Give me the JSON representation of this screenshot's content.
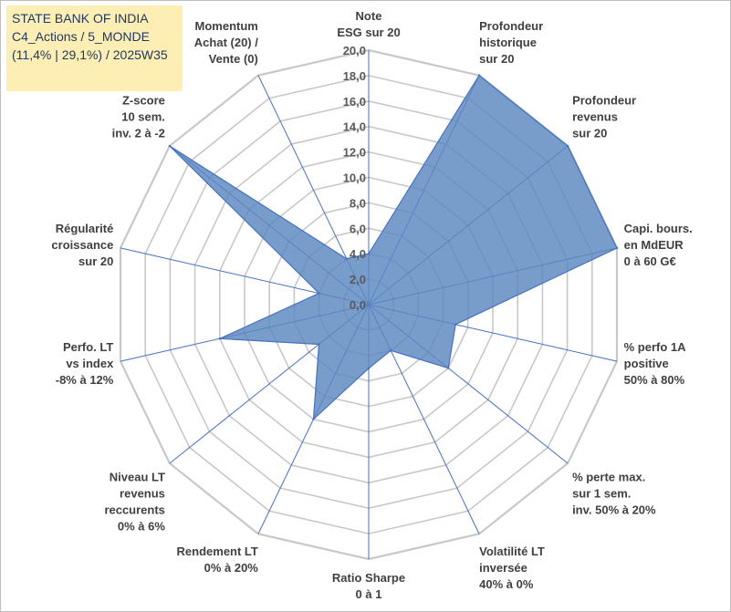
{
  "title_box": {
    "line1": "STATE BANK OF INDIA",
    "line2": "C4_Actions / 5_MONDE",
    "line3": "(11,4% | 29,1%) / 2025W35"
  },
  "chart_data": {
    "type": "radar",
    "title": "STATE BANK OF INDIA",
    "rmin": 0,
    "rmax": 20,
    "tick_step": 2,
    "tick_labels": [
      "0,0",
      "2,0",
      "4,0",
      "6,0",
      "8,0",
      "10,0",
      "12,0",
      "14,0",
      "16,0",
      "18,0",
      "20,0"
    ],
    "axes": [
      [
        "Note",
        "ESG sur 20"
      ],
      [
        "Profondeur",
        "historique",
        "sur 20"
      ],
      [
        "Profondeur",
        "revenus",
        "sur 20"
      ],
      [
        "Capi. bours.",
        "en MdEUR",
        "0 à 60 G€"
      ],
      [
        "% perfo 1A",
        "positive",
        "50% à 80%"
      ],
      [
        "% perte max.",
        "sur 1 sem.",
        "inv. 50% à 20%"
      ],
      [
        "Volatilité LT",
        "inversée",
        "40% à 0%"
      ],
      [
        "Ratio Sharpe",
        "0 à 1"
      ],
      [
        "Rendement LT",
        "0% à 20%"
      ],
      [
        "Niveau LT",
        "revenus",
        "reccurents",
        "0% à 6%"
      ],
      [
        "Perfo. LT",
        "vs index",
        "-8% à 12%"
      ],
      [
        "Régularité",
        "croissance",
        "sur 20"
      ],
      [
        "Z-score",
        "10 sem.",
        "inv. 2 à -2"
      ],
      [
        "Momentum",
        "Achat (20) /",
        "Vente (0)"
      ]
    ],
    "series": [
      {
        "values": [
          4.0,
          20.0,
          20.0,
          20.0,
          7.0,
          8.0,
          4.0,
          5.0,
          10.0,
          5.0,
          12.0,
          4.0,
          20.0,
          4.0
        ]
      }
    ],
    "colors": {
      "fill": "#5b87bf",
      "fill_opacity": 0.82,
      "stroke": "#4472c4",
      "grid": "#c8c8c8",
      "spoke": "#4472c4"
    },
    "grid": true,
    "legend": "none"
  }
}
